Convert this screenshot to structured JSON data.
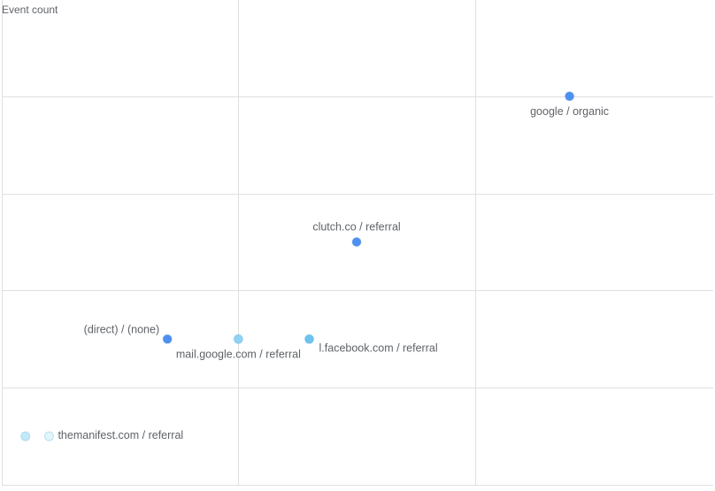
{
  "chart_data": {
    "type": "scatter",
    "title": "",
    "xlabel": "",
    "ylabel": "Event count",
    "grid": true,
    "xlim": [
      0,
      3
    ],
    "ylim": [
      0,
      5
    ],
    "x_gridlines": [
      1,
      2
    ],
    "y_gridlines": [
      1,
      2,
      3,
      4
    ],
    "points": [
      {
        "label": "google / organic",
        "x": 2.4,
        "y": 4.0,
        "color": "#4e8ff0",
        "label_pos": "below"
      },
      {
        "label": "clutch.co / referral",
        "x": 1.5,
        "y": 2.5,
        "color": "#4e8ff0",
        "label_pos": "above"
      },
      {
        "label": "(direct) / (none)",
        "x": 0.7,
        "y": 1.5,
        "color": "#4e8ff0",
        "label_pos": "above-left"
      },
      {
        "label": "mail.google.com / referral",
        "x": 1.0,
        "y": 1.5,
        "color": "#8fd3f2",
        "label_pos": "below"
      },
      {
        "label": "l.facebook.com / referral",
        "x": 1.3,
        "y": 1.5,
        "color": "#6cc4ef",
        "label_pos": "below-right"
      },
      {
        "label": "",
        "x": 0.1,
        "y": 0.5,
        "color": "#c2e9f7",
        "label_pos": "none"
      },
      {
        "label": "themanifest.com / referral",
        "x": 0.2,
        "y": 0.5,
        "color": "#e3f5fb",
        "label_pos": "right"
      }
    ]
  }
}
